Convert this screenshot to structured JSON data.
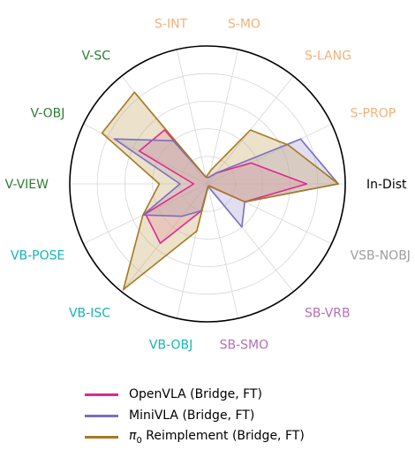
{
  "chart_data": {
    "type": "radar",
    "axes": [
      {
        "label": "In-Dist",
        "color": "#000000"
      },
      {
        "label": "S-PROP",
        "color": "#F5B07A"
      },
      {
        "label": "S-LANG",
        "color": "#F5B07A"
      },
      {
        "label": "S-MO",
        "color": "#F5B07A"
      },
      {
        "label": "S-INT",
        "color": "#F5B07A"
      },
      {
        "label": "V-SC",
        "color": "#2E7D32"
      },
      {
        "label": "V-OBJ",
        "color": "#2E7D32"
      },
      {
        "label": "V-VIEW",
        "color": "#2E7D32"
      },
      {
        "label": "VB-POSE",
        "color": "#17B3B3"
      },
      {
        "label": "VB-ISC",
        "color": "#17B3B3"
      },
      {
        "label": "VB-OBJ",
        "color": "#17B3B3"
      },
      {
        "label": "SB-SMO",
        "color": "#B46FB4"
      },
      {
        "label": "SB-VRB",
        "color": "#B46FB4"
      },
      {
        "label": "VSB-NOBJ",
        "color": "#9E9E9E"
      }
    ],
    "rlim": [
      0,
      1
    ],
    "grid": true,
    "legend_position": "bottom",
    "series": [
      {
        "name": "OpenVLA (Bridge, FT)",
        "color": "#E0288E",
        "fill": "#F48FBF",
        "values": [
          0.72,
          0.35,
          0.1,
          0.05,
          0.05,
          0.5,
          0.55,
          0.1,
          0.5,
          0.55,
          0.2,
          0.02,
          0.02,
          0.3
        ]
      },
      {
        "name": "MiniVLA (Bridge, FT)",
        "color": "#7B6FBE",
        "fill": "#A8A0D8",
        "values": [
          0.95,
          0.75,
          0.1,
          0.05,
          0.05,
          0.4,
          0.75,
          0.2,
          0.52,
          0.3,
          0.2,
          0.02,
          0.4,
          0.3
        ]
      },
      {
        "name": "$\\pi_0$ Reimplement (Bridge, FT)",
        "legend_prefix": "π",
        "legend_sub": "0",
        "legend_rest": " Reimplement (Bridge, FT)",
        "color": "#A57A22",
        "fill": "#C9A86A",
        "values": [
          0.95,
          0.65,
          0.5,
          0.1,
          0.05,
          0.85,
          0.85,
          0.35,
          0.52,
          0.98,
          0.35,
          0.02,
          0.02,
          0.3
        ]
      }
    ]
  },
  "legend": {
    "items": [
      {
        "label": "OpenVLA (Bridge, FT)"
      },
      {
        "label": "MiniVLA (Bridge, FT)"
      },
      {
        "label_main": "π",
        "label_sub": "0",
        "label_rest": " Reimplement (Bridge, FT)"
      }
    ]
  }
}
